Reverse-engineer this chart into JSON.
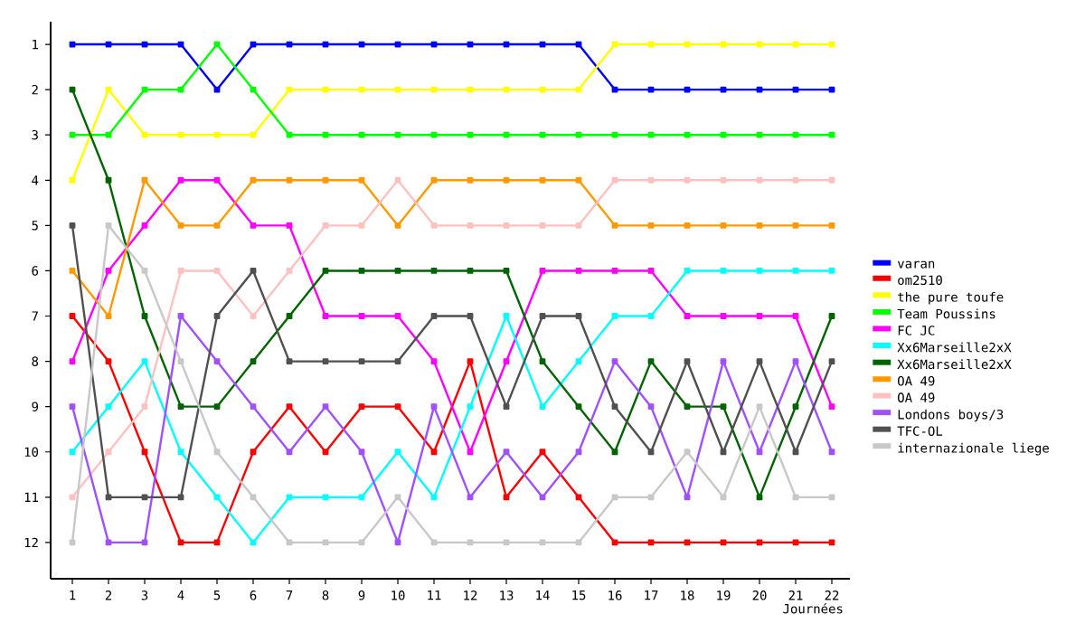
{
  "chart_data": {
    "type": "line",
    "xlabel": "Journées",
    "marker": "square",
    "legend": "right",
    "x": [
      1,
      2,
      3,
      4,
      5,
      6,
      7,
      8,
      9,
      10,
      11,
      12,
      13,
      14,
      15,
      16,
      17,
      18,
      19,
      20,
      21,
      22
    ],
    "xlim": [
      0.4,
      22.5
    ],
    "xticks": [
      1,
      2,
      3,
      4,
      5,
      6,
      7,
      8,
      9,
      10,
      11,
      12,
      13,
      14,
      15,
      16,
      17,
      18,
      19,
      20,
      21,
      22
    ],
    "ylim": [
      12.8,
      0.5
    ],
    "yticks": [
      1,
      2,
      3,
      4,
      5,
      6,
      7,
      8,
      9,
      10,
      11,
      12
    ],
    "series": [
      {
        "name": "varan",
        "color": "#0000ff",
        "values": [
          1,
          1,
          1,
          1,
          2,
          1,
          1,
          1,
          1,
          1,
          1,
          1,
          1,
          1,
          1,
          2,
          2,
          2,
          2,
          2,
          2,
          2
        ]
      },
      {
        "name": "om2510",
        "color": "#ff0000",
        "values": [
          7,
          8,
          10,
          12,
          12,
          10,
          9,
          10,
          9,
          9,
          10,
          8,
          11,
          10,
          11,
          12,
          12,
          12,
          12,
          12,
          12,
          12
        ]
      },
      {
        "name": "the pure toufe",
        "color": "#ffff00",
        "values": [
          4,
          2,
          3,
          3,
          3,
          3,
          2,
          2,
          2,
          2,
          2,
          2,
          2,
          2,
          2,
          1,
          1,
          1,
          1,
          1,
          1,
          1
        ]
      },
      {
        "name": "Team Poussins",
        "color": "#00ff00",
        "values": [
          3,
          3,
          2,
          2,
          1,
          2,
          3,
          3,
          3,
          3,
          3,
          3,
          3,
          3,
          3,
          3,
          3,
          3,
          3,
          3,
          3,
          3
        ]
      },
      {
        "name": "FC JC",
        "color": "#ff00ff",
        "values": [
          8,
          6,
          5,
          4,
          4,
          5,
          5,
          7,
          7,
          7,
          8,
          10,
          8,
          6,
          6,
          6,
          6,
          7,
          7,
          7,
          7,
          9
        ]
      },
      {
        "name": "Xx6Marseille2xX",
        "color": "#00ffff",
        "values": [
          10,
          9,
          8,
          10,
          11,
          12,
          11,
          11,
          11,
          10,
          11,
          9,
          7,
          9,
          8,
          7,
          7,
          6,
          6,
          6,
          6,
          6
        ]
      },
      {
        "name": "Xx6Marseille2xX",
        "color": "#006400",
        "values": [
          2,
          4,
          7,
          9,
          9,
          8,
          7,
          6,
          6,
          6,
          6,
          6,
          6,
          8,
          9,
          10,
          8,
          9,
          9,
          11,
          9,
          7
        ]
      },
      {
        "name": "OA 49",
        "color": "#ff9900",
        "values": [
          6,
          7,
          4,
          5,
          5,
          4,
          4,
          4,
          4,
          5,
          4,
          4,
          4,
          4,
          4,
          5,
          5,
          5,
          5,
          5,
          5,
          5
        ]
      },
      {
        "name": "OA 49",
        "color": "#ffc0c0",
        "values": [
          11,
          10,
          9,
          6,
          6,
          7,
          6,
          5,
          5,
          4,
          5,
          5,
          5,
          5,
          5,
          4,
          4,
          4,
          4,
          4,
          4,
          4
        ]
      },
      {
        "name": "Londons boys/3",
        "color": "#a050ff",
        "values": [
          9,
          12,
          12,
          7,
          8,
          9,
          10,
          9,
          10,
          12,
          9,
          11,
          10,
          11,
          10,
          8,
          9,
          11,
          8,
          10,
          8,
          10
        ]
      },
      {
        "name": "TFC-OL",
        "color": "#505050",
        "values": [
          5,
          11,
          11,
          11,
          7,
          6,
          8,
          8,
          8,
          8,
          7,
          7,
          9,
          7,
          7,
          9,
          10,
          8,
          10,
          8,
          10,
          8
        ]
      },
      {
        "name": "internazionale liege",
        "color": "#c8c8c8",
        "values": [
          12,
          5,
          6,
          8,
          10,
          11,
          12,
          12,
          12,
          11,
          12,
          12,
          12,
          12,
          12,
          11,
          11,
          10,
          11,
          9,
          11,
          11
        ]
      }
    ]
  }
}
